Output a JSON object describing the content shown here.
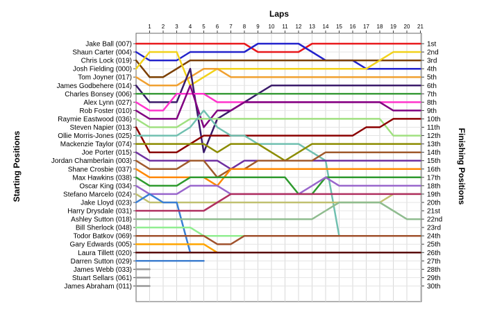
{
  "chart_data": {
    "type": "line",
    "title": "",
    "xlabel": "Laps",
    "ylabel_left": "Starting Positions",
    "ylabel_right": "Finishing Positions",
    "laps": [
      1,
      2,
      3,
      4,
      5,
      6,
      7,
      8,
      9,
      10,
      11,
      12,
      13,
      14,
      15,
      16,
      17,
      18,
      19,
      20,
      21
    ],
    "finishing_labels": [
      "1st",
      "2nd",
      "3rd",
      "4th",
      "5th",
      "6th",
      "7th",
      "8th",
      "9th",
      "10th",
      "11th",
      "12th",
      "13th",
      "14th",
      "15th",
      "16th",
      "17th",
      "18th",
      "19th",
      "20th",
      "21st",
      "22nd",
      "23rd",
      "24th",
      "25th",
      "26th",
      "27th",
      "28th",
      "29th",
      "30th"
    ],
    "grid": true,
    "series": [
      {
        "name": "Jake Ball (007)",
        "color": "#e8191c",
        "start": 1,
        "positions": [
          1,
          1,
          1,
          1,
          1,
          1,
          1,
          1,
          2,
          2,
          2,
          2,
          1,
          1,
          1,
          1,
          1,
          1,
          1,
          1,
          1
        ]
      },
      {
        "name": "Shaun Carter (004)",
        "color": "#2222cc",
        "start": 2,
        "positions": [
          3,
          3,
          3,
          2,
          2,
          2,
          2,
          2,
          1,
          1,
          1,
          1,
          2,
          3,
          3,
          3,
          4,
          4,
          4,
          4,
          4
        ]
      },
      {
        "name": "Chris Lock (019)",
        "color": "#7b3f00",
        "start": 3,
        "positions": [
          5,
          5,
          4,
          3,
          3,
          3,
          3,
          3,
          3,
          3,
          3,
          3,
          3,
          3,
          3,
          3,
          3,
          3,
          3,
          3,
          3
        ]
      },
      {
        "name": "Josh Fielding (000)",
        "color": "#f2d21a",
        "start": 4,
        "positions": [
          2,
          2,
          2,
          6,
          5,
          4,
          4,
          4,
          4,
          4,
          4,
          4,
          4,
          4,
          4,
          4,
          4,
          3,
          2,
          2,
          2
        ]
      },
      {
        "name": "Tom Joyner (017)",
        "color": "#f0a030",
        "start": 5,
        "positions": [
          6,
          6,
          6,
          5,
          4,
          4,
          5,
          5,
          5,
          5,
          5,
          5,
          5,
          5,
          5,
          5,
          5,
          5,
          5,
          5,
          5
        ]
      },
      {
        "name": "James Godbehere (014)",
        "color": "#3a1a6a",
        "start": 6,
        "positions": [
          8,
          8,
          8,
          4,
          14,
          10,
          9,
          8,
          7,
          6,
          6,
          6,
          6,
          6,
          6,
          6,
          6,
          6,
          6,
          6,
          6
        ]
      },
      {
        "name": "Charles Bonsey (006)",
        "color": "#3c9c3c",
        "start": 7,
        "positions": [
          7,
          7,
          7,
          7,
          7,
          7,
          7,
          7,
          7,
          7,
          7,
          7,
          7,
          7,
          7,
          7,
          7,
          7,
          7,
          7,
          7
        ]
      },
      {
        "name": "Alex Lynn (027)",
        "color": "#ff33cc",
        "start": 8,
        "positions": [
          9,
          9,
          7,
          7,
          7,
          8,
          8,
          8,
          8,
          8,
          8,
          8,
          8,
          8,
          8,
          8,
          8,
          8,
          8,
          8,
          8
        ]
      },
      {
        "name": "Rob Foster (010)",
        "color": "#800080",
        "start": 9,
        "positions": [
          10,
          10,
          10,
          6,
          11,
          9,
          9,
          8,
          8,
          8,
          8,
          8,
          8,
          8,
          8,
          8,
          8,
          8,
          9,
          9,
          9
        ]
      },
      {
        "name": "Raymie Eastwood (036)",
        "color": "#a0e080",
        "start": 10,
        "positions": [
          11,
          11,
          11,
          10,
          10,
          10,
          10,
          10,
          10,
          10,
          10,
          10,
          10,
          10,
          10,
          10,
          10,
          10,
          12,
          12,
          12
        ]
      },
      {
        "name": "Steven Napier (013)",
        "color": "#8b0000",
        "start": 11,
        "positions": [
          14,
          14,
          14,
          13,
          12,
          12,
          12,
          12,
          12,
          12,
          12,
          12,
          12,
          12,
          12,
          12,
          11,
          11,
          10,
          10,
          10
        ]
      },
      {
        "name": "Ollie Morris-Jones (025)",
        "color": "#70c0b0",
        "start": 12,
        "positions": [
          12,
          12,
          12,
          11,
          9,
          11,
          12,
          12,
          13,
          13,
          13,
          13,
          14,
          15,
          24,
          24,
          24,
          24,
          24,
          24,
          24
        ]
      },
      {
        "name": "Mackenzie Taylor (074)",
        "color": "#8c8c00",
        "start": 13,
        "positions": [
          13,
          13,
          13,
          13,
          13,
          14,
          13,
          13,
          13,
          14,
          15,
          14,
          13,
          13,
          13,
          13,
          13,
          13,
          13,
          13,
          13
        ]
      },
      {
        "name": "Joe Porter (015)",
        "color": "#7030a0",
        "start": 14,
        "positions": [
          15,
          15,
          15,
          15,
          15,
          15,
          16,
          15,
          15,
          15,
          15,
          15,
          15,
          15,
          15,
          15,
          15,
          15,
          15,
          15,
          15
        ]
      },
      {
        "name": "Jordan Chamberlain (003)",
        "color": "#a05a2c",
        "start": 15,
        "positions": [
          16,
          16,
          16,
          15,
          15,
          17,
          16,
          16,
          15,
          15,
          15,
          15,
          15,
          14,
          14,
          14,
          14,
          14,
          14,
          14,
          14
        ]
      },
      {
        "name": "Shane Crosbie (037)",
        "color": "#ff8800",
        "start": 16,
        "positions": [
          17,
          17,
          17,
          17,
          17,
          18,
          16,
          16,
          16,
          16,
          16,
          16,
          16,
          16,
          16,
          16,
          16,
          16,
          16,
          16,
          16
        ]
      },
      {
        "name": "Max Hawkins (038)",
        "color": "#2e9a2e",
        "start": 17,
        "positions": [
          18,
          18,
          18,
          17,
          17,
          17,
          17,
          17,
          17,
          17,
          17,
          19,
          19,
          17,
          17,
          17,
          17,
          17,
          17,
          17,
          17
        ]
      },
      {
        "name": "Oscar King (034)",
        "color": "#9966cc",
        "start": 18,
        "positions": [
          19,
          19,
          19,
          18,
          18,
          18,
          19,
          19,
          19,
          19,
          19,
          19,
          18,
          17,
          18,
          18,
          18,
          18,
          18,
          18,
          18
        ]
      },
      {
        "name": "Stefano Marcelo (024)",
        "color": "#c0c070",
        "start": 19,
        "positions": [
          20,
          20,
          20,
          20,
          20,
          20,
          20,
          20,
          20,
          20,
          20,
          20,
          20,
          20,
          20,
          20,
          20,
          20,
          19,
          19,
          19
        ]
      },
      {
        "name": "Jake Lloyd (023)",
        "color": "#3a7fd4",
        "start": 20,
        "positions": [
          19,
          20,
          20,
          26,
          26,
          26,
          26,
          26,
          26,
          26,
          26,
          26,
          26,
          26,
          26,
          26,
          26,
          26,
          26,
          26,
          26
        ]
      },
      {
        "name": "Harry Drysdale (031)",
        "color": "#b03060",
        "start": 21,
        "positions": [
          21,
          21,
          21,
          21,
          21,
          20,
          19,
          19,
          19,
          19,
          19,
          19,
          19,
          19,
          19,
          19,
          19,
          19,
          19,
          19,
          19
        ]
      },
      {
        "name": "Ashley Sutton (018)",
        "color": "#8fbc8f",
        "start": 22,
        "positions": [
          22,
          22,
          22,
          22,
          22,
          22,
          22,
          22,
          22,
          22,
          22,
          22,
          22,
          21,
          20,
          20,
          20,
          20,
          21,
          22,
          22
        ]
      },
      {
        "name": "Bill Sherlock (048)",
        "color": "#90ee90",
        "start": 23,
        "positions": [
          23,
          23,
          23,
          23,
          24,
          24,
          24,
          24,
          24,
          24,
          24,
          24,
          24,
          24,
          24,
          24,
          24,
          24,
          24,
          24,
          24
        ]
      },
      {
        "name": "Todor Batkov (069)",
        "color": "#a0522d",
        "start": 24,
        "positions": [
          24,
          24,
          24,
          24,
          24,
          25,
          25,
          24,
          24,
          24,
          24,
          24,
          24,
          24,
          24,
          24,
          24,
          24,
          24,
          24,
          24
        ]
      },
      {
        "name": "Gary Edwards (005)",
        "color": "#ffa500",
        "start": 25,
        "positions": [
          25,
          25,
          25,
          25,
          25,
          26,
          26,
          26,
          26,
          26,
          26,
          26,
          26,
          26,
          26,
          26,
          26,
          26,
          26,
          26,
          26
        ]
      },
      {
        "name": "Laura Tillett (020)",
        "color": "#5a0a0a",
        "start": 26,
        "positions": [
          26,
          26,
          26,
          26,
          26,
          26,
          26,
          26,
          26,
          26,
          26,
          26,
          26,
          26,
          26,
          26,
          26,
          26,
          26,
          26,
          26
        ]
      },
      {
        "name": "Darren Sutton (029)",
        "color": "#3f7fd0",
        "start": 27,
        "positions": [
          27,
          27,
          27,
          27,
          27
        ]
      },
      {
        "name": "James Webb (033)",
        "color": "#999999",
        "start": 28,
        "positions": [
          28
        ]
      },
      {
        "name": "Stuart Sellars (061)",
        "color": "#999999",
        "start": 29,
        "positions": [
          29
        ]
      },
      {
        "name": "James Abraham (011)",
        "color": "#999999",
        "start": 30,
        "positions": [
          30
        ]
      }
    ]
  }
}
